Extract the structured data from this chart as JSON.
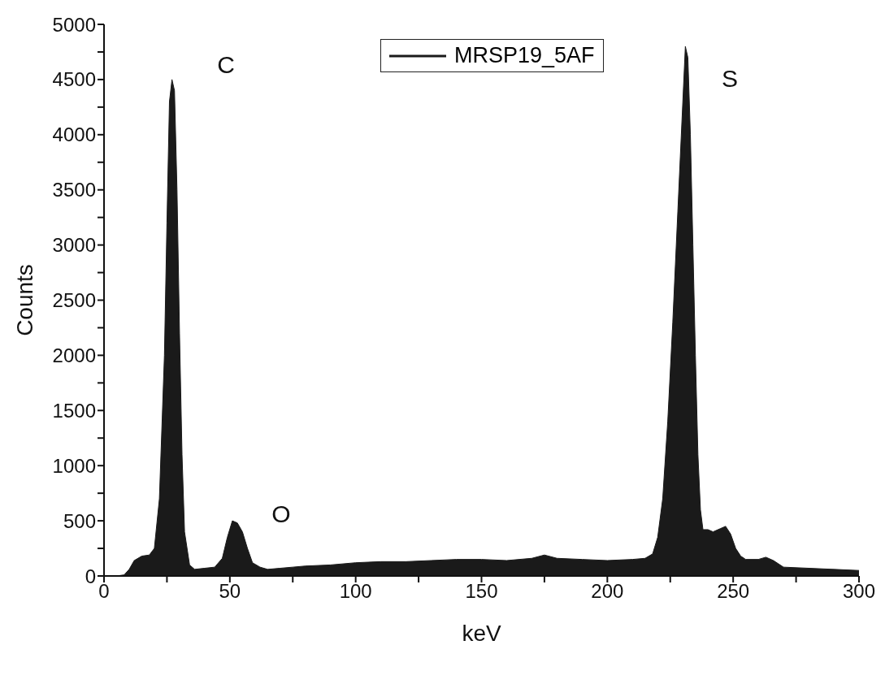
{
  "chart_data": {
    "type": "area",
    "xlabel": "keV",
    "ylabel": "Counts",
    "legend": "top",
    "xlim": [
      0,
      300
    ],
    "ylim": [
      0,
      5000
    ],
    "xticks": [
      0,
      {
        "value": 25,
        "label": null
      },
      50,
      {
        "value": 75,
        "label": null
      },
      100,
      {
        "value": 125,
        "label": null
      },
      150,
      {
        "value": 175,
        "label": null
      },
      200,
      {
        "value": 225,
        "label": null
      },
      250,
      {
        "value": 275,
        "label": null
      },
      300
    ],
    "yticks": [
      0,
      {
        "value": 250,
        "label": null
      },
      500,
      {
        "value": 750,
        "label": null
      },
      1000,
      {
        "value": 1250,
        "label": null
      },
      1500,
      {
        "value": 1750,
        "label": null
      },
      2000,
      {
        "value": 2250,
        "label": null
      },
      2500,
      {
        "value": 2750,
        "label": null
      },
      3000,
      {
        "value": 3250,
        "label": null
      },
      3500,
      {
        "value": 3750,
        "label": null
      },
      4000,
      {
        "value": 4250,
        "label": null
      },
      4500,
      {
        "value": 4750,
        "label": null
      },
      5000
    ],
    "annotations": [
      "C",
      "O",
      "S"
    ],
    "series": [
      {
        "name": "MRSP19_5AF",
        "color": "#1a1a1a",
        "x": [
          0,
          5,
          8,
          10,
          12,
          15,
          18,
          20,
          22,
          24,
          25,
          26,
          27,
          28,
          29,
          30,
          31,
          32,
          34,
          36,
          40,
          44,
          47,
          49,
          51,
          53,
          55,
          57,
          59,
          62,
          65,
          70,
          75,
          80,
          90,
          100,
          110,
          120,
          130,
          140,
          150,
          160,
          170,
          175,
          180,
          190,
          200,
          210,
          215,
          218,
          220,
          222,
          224,
          226,
          228,
          230,
          231,
          232,
          233,
          234,
          235,
          236,
          237,
          238,
          240,
          242,
          245,
          247,
          249,
          251,
          253,
          255,
          260,
          263,
          266,
          270,
          280,
          290,
          300
        ],
        "values": [
          0,
          0,
          10,
          60,
          140,
          180,
          190,
          250,
          700,
          2000,
          3200,
          4300,
          4500,
          4400,
          3500,
          2200,
          1100,
          400,
          100,
          60,
          70,
          80,
          160,
          350,
          500,
          480,
          400,
          250,
          120,
          80,
          60,
          70,
          80,
          90,
          100,
          120,
          130,
          130,
          140,
          150,
          150,
          140,
          160,
          190,
          160,
          150,
          140,
          150,
          160,
          200,
          350,
          700,
          1400,
          2300,
          3300,
          4300,
          4800,
          4700,
          4000,
          3000,
          2000,
          1100,
          600,
          420,
          420,
          400,
          430,
          450,
          380,
          250,
          180,
          150,
          150,
          170,
          140,
          80,
          70,
          60,
          50
        ]
      }
    ]
  }
}
